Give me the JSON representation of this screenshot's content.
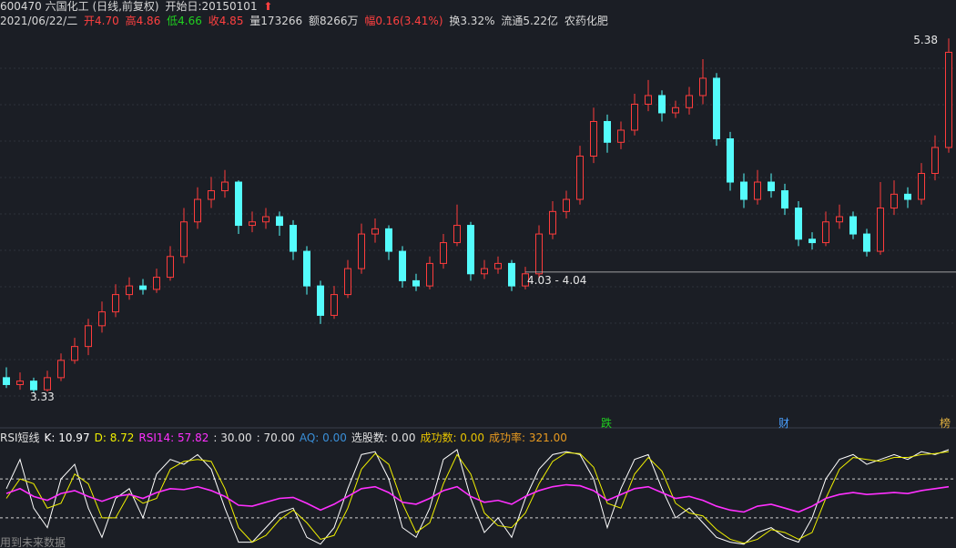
{
  "header": {
    "code_line": "600470 六国化工 (日线,前复权)",
    "start_date": "开始日:20150101",
    "date": "2021/06/22/二",
    "open": "开4.70",
    "high": "高4.86",
    "low": "低4.66",
    "close": "收4.85",
    "volume": "量173266",
    "amount": "额8266万",
    "change": "幅0.16(3.41%)",
    "turnover": "换3.32%",
    "float_cap": "流通5.22亿",
    "industry": "农药化肥",
    "events": [
      "跌",
      "财",
      "榜"
    ],
    "footer": "用到未来数据"
  },
  "chart_data": [
    {
      "type": "candlestick",
      "ylim": [
        3.13,
        5.56
      ],
      "up_color": "#ff3c3c",
      "down_color": "#54fcfc",
      "high_label": "5.38",
      "low_label": "3.33",
      "range_line": {
        "value": 4.03,
        "label": "4.03 - 4.04"
      },
      "ohlc": [
        [
          3.42,
          3.48,
          3.36,
          3.38
        ],
        [
          3.38,
          3.45,
          3.35,
          3.4
        ],
        [
          3.4,
          3.42,
          3.33,
          3.35
        ],
        [
          3.35,
          3.46,
          3.34,
          3.42
        ],
        [
          3.42,
          3.56,
          3.4,
          3.52
        ],
        [
          3.52,
          3.65,
          3.5,
          3.6
        ],
        [
          3.6,
          3.76,
          3.55,
          3.72
        ],
        [
          3.72,
          3.86,
          3.68,
          3.8
        ],
        [
          3.8,
          3.96,
          3.77,
          3.9
        ],
        [
          3.9,
          4.0,
          3.87,
          3.95
        ],
        [
          3.95,
          3.99,
          3.9,
          3.93
        ],
        [
          3.93,
          4.05,
          3.91,
          4.0
        ],
        [
          4.0,
          4.18,
          3.98,
          4.12
        ],
        [
          4.12,
          4.4,
          4.08,
          4.32
        ],
        [
          4.32,
          4.52,
          4.28,
          4.45
        ],
        [
          4.45,
          4.58,
          4.4,
          4.5
        ],
        [
          4.5,
          4.62,
          4.46,
          4.55
        ],
        [
          4.55,
          4.56,
          4.25,
          4.3
        ],
        [
          4.3,
          4.38,
          4.26,
          4.32
        ],
        [
          4.32,
          4.4,
          4.28,
          4.35
        ],
        [
          4.35,
          4.38,
          4.24,
          4.3
        ],
        [
          4.3,
          4.33,
          4.1,
          4.15
        ],
        [
          4.15,
          4.18,
          3.9,
          3.95
        ],
        [
          3.95,
          3.98,
          3.73,
          3.78
        ],
        [
          3.78,
          3.95,
          3.76,
          3.9
        ],
        [
          3.9,
          4.1,
          3.88,
          4.05
        ],
        [
          4.05,
          4.31,
          4.02,
          4.25
        ],
        [
          4.25,
          4.34,
          4.2,
          4.28
        ],
        [
          4.28,
          4.3,
          4.1,
          4.15
        ],
        [
          4.15,
          4.18,
          3.94,
          3.98
        ],
        [
          3.98,
          4.02,
          3.92,
          3.95
        ],
        [
          3.95,
          4.12,
          3.93,
          4.08
        ],
        [
          4.08,
          4.25,
          4.05,
          4.2
        ],
        [
          4.2,
          4.42,
          4.18,
          4.3
        ],
        [
          4.3,
          4.32,
          3.98,
          4.02
        ],
        [
          4.02,
          4.1,
          3.99,
          4.05
        ],
        [
          4.05,
          4.12,
          4.02,
          4.08
        ],
        [
          4.08,
          4.1,
          3.92,
          3.95
        ],
        [
          3.95,
          4.06,
          3.93,
          4.02
        ],
        [
          4.02,
          4.3,
          4.0,
          4.25
        ],
        [
          4.25,
          4.44,
          4.22,
          4.38
        ],
        [
          4.38,
          4.5,
          4.34,
          4.45
        ],
        [
          4.45,
          4.76,
          4.42,
          4.7
        ],
        [
          4.7,
          4.98,
          4.66,
          4.9
        ],
        [
          4.9,
          4.94,
          4.72,
          4.78
        ],
        [
          4.78,
          4.9,
          4.74,
          4.85
        ],
        [
          4.85,
          5.06,
          4.82,
          5.0
        ],
        [
          5.0,
          5.14,
          4.96,
          5.05
        ],
        [
          5.05,
          5.08,
          4.9,
          4.95
        ],
        [
          4.95,
          5.02,
          4.92,
          4.98
        ],
        [
          4.98,
          5.1,
          4.94,
          5.05
        ],
        [
          5.05,
          5.26,
          5.0,
          5.15
        ],
        [
          5.15,
          5.18,
          4.76,
          4.8
        ],
        [
          4.8,
          4.84,
          4.5,
          4.55
        ],
        [
          4.55,
          4.6,
          4.4,
          4.45
        ],
        [
          4.45,
          4.62,
          4.42,
          4.55
        ],
        [
          4.55,
          4.6,
          4.46,
          4.5
        ],
        [
          4.5,
          4.54,
          4.36,
          4.4
        ],
        [
          4.4,
          4.44,
          4.18,
          4.22
        ],
        [
          4.22,
          4.26,
          4.16,
          4.2
        ],
        [
          4.2,
          4.38,
          4.18,
          4.32
        ],
        [
          4.32,
          4.42,
          4.28,
          4.35
        ],
        [
          4.35,
          4.38,
          4.22,
          4.25
        ],
        [
          4.25,
          4.28,
          4.12,
          4.15
        ],
        [
          4.15,
          4.55,
          4.13,
          4.4
        ],
        [
          4.4,
          4.56,
          4.36,
          4.48
        ],
        [
          4.48,
          4.52,
          4.4,
          4.45
        ],
        [
          4.45,
          4.66,
          4.42,
          4.6
        ],
        [
          4.6,
          4.82,
          4.56,
          4.75
        ],
        [
          4.75,
          5.38,
          4.72,
          5.3
        ]
      ]
    },
    {
      "type": "line",
      "title": "RSI短线",
      "ylim": [
        0,
        100
      ],
      "hlines": [
        {
          "value": 30,
          "label": ": 30.00"
        },
        {
          "value": 70,
          "label": ": 70.00"
        }
      ],
      "extras": [
        {
          "label": "AQ: 0.00",
          "color": "#3a8fd8"
        },
        {
          "label": "选股数: 0.00",
          "color": "#e0e0e0"
        },
        {
          "label": "成功数: 0.00",
          "color": "#e8c400"
        },
        {
          "label": "成功率: 321.00",
          "color": "#e89a20"
        }
      ],
      "series": [
        {
          "name": "K: 10.97",
          "color": "#ffffff",
          "values": [
            60,
            90,
            40,
            20,
            70,
            85,
            40,
            10,
            50,
            60,
            30,
            75,
            90,
            85,
            95,
            80,
            40,
            5,
            5,
            20,
            35,
            40,
            10,
            3,
            20,
            60,
            95,
            98,
            70,
            20,
            10,
            40,
            90,
            100,
            50,
            15,
            30,
            10,
            50,
            80,
            95,
            98,
            95,
            70,
            20,
            60,
            90,
            95,
            60,
            30,
            40,
            25,
            10,
            5,
            3,
            15,
            20,
            10,
            5,
            30,
            70,
            90,
            95,
            85,
            90,
            95,
            90,
            98,
            95,
            100
          ]
        },
        {
          "name": "D: 8.72",
          "color": "#f0f000",
          "values": [
            50,
            70,
            65,
            40,
            45,
            75,
            65,
            30,
            30,
            55,
            45,
            50,
            80,
            88,
            90,
            88,
            60,
            20,
            5,
            12,
            28,
            38,
            25,
            8,
            12,
            40,
            80,
            96,
            85,
            45,
            15,
            25,
            65,
            95,
            75,
            35,
            22,
            20,
            35,
            65,
            88,
            97,
            96,
            82,
            45,
            40,
            75,
            92,
            78,
            45,
            35,
            32,
            18,
            8,
            4,
            8,
            18,
            15,
            8,
            15,
            50,
            80,
            92,
            90,
            88,
            92,
            92,
            95,
            96,
            98
          ]
        },
        {
          "name": "RSI14: 57.82",
          "color": "#ff30ff",
          "values": [
            55,
            60,
            52,
            48,
            55,
            58,
            52,
            47,
            52,
            54,
            50,
            56,
            60,
            59,
            62,
            58,
            52,
            43,
            42,
            46,
            50,
            51,
            45,
            38,
            44,
            52,
            60,
            62,
            56,
            46,
            44,
            50,
            58,
            62,
            52,
            46,
            48,
            44,
            52,
            58,
            62,
            64,
            63,
            58,
            48,
            54,
            60,
            62,
            56,
            50,
            52,
            48,
            42,
            38,
            36,
            42,
            44,
            40,
            36,
            42,
            50,
            54,
            56,
            54,
            55,
            56,
            55,
            58,
            60,
            62
          ]
        }
      ]
    }
  ]
}
